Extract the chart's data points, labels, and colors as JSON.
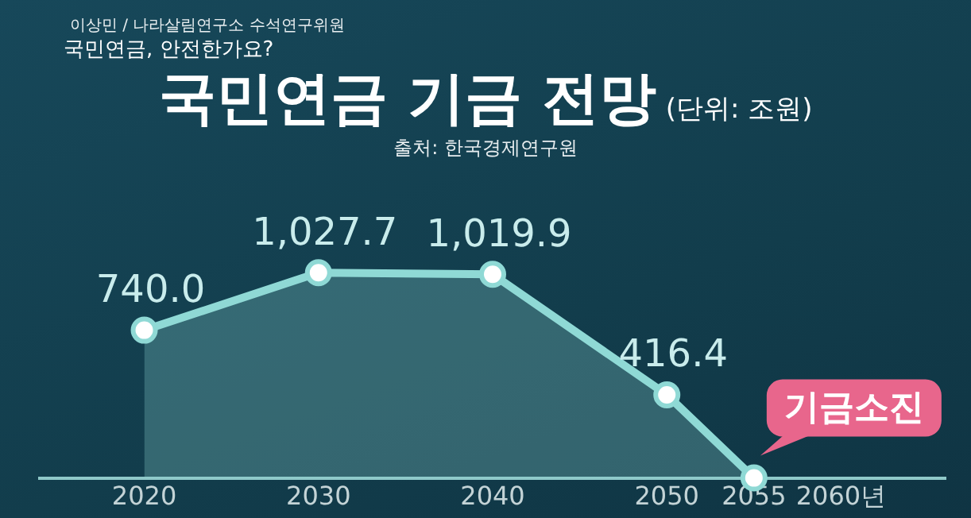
{
  "chart_data": {
    "type": "area",
    "title": "국민연금 기금 전망",
    "subtitle": "(단위: 조원)",
    "annotations": [
      "이상민 / 나라살림연구소 수석연구위원",
      "국민연금, 안전한가요?",
      "출처: 한국경제연구원",
      {
        "text": "기금소진",
        "x": 2055,
        "y": 0
      }
    ],
    "x": [
      2020,
      2030,
      2040,
      2050,
      2055
    ],
    "series": [
      {
        "color": "#8fd9d5",
        "values": [
          740.0,
          1027.7,
          1019.9,
          416.4,
          0
        ],
        "value_labels": [
          "740.0",
          "1,027.7",
          "1,019.9",
          "416.4",
          null
        ]
      }
    ],
    "xlim": [
      2014,
      2066
    ],
    "xticks": [
      2020,
      2030,
      2040,
      2050,
      2055,
      {
        "value": 2060,
        "label": "2060년"
      }
    ],
    "grid": false,
    "legend": false,
    "marker": "circle"
  }
}
